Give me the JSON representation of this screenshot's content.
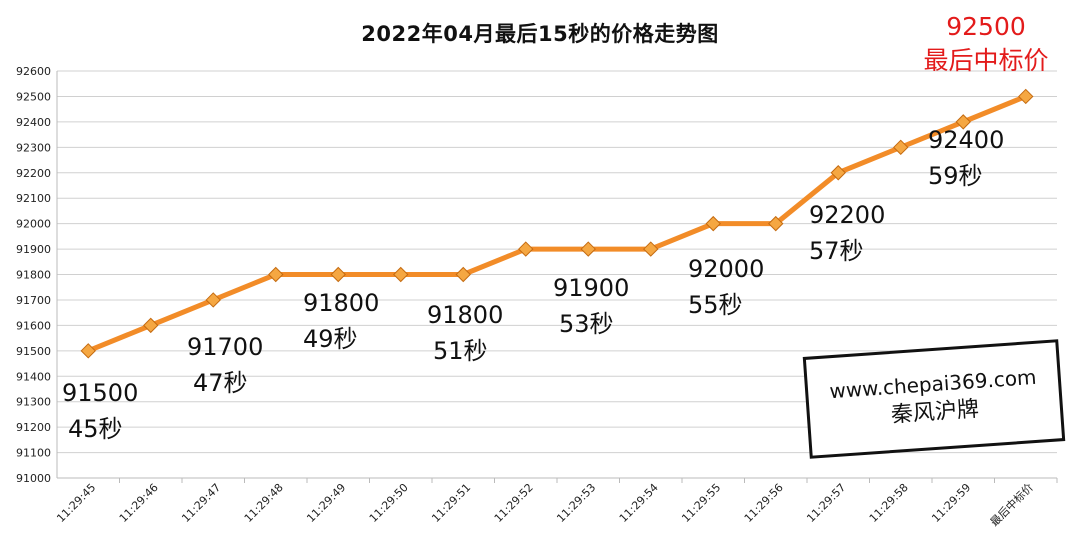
{
  "chart_data": {
    "type": "line",
    "title": "2022年04月最后15秒的价格走势图",
    "categories": [
      "11:29:45",
      "11:29:46",
      "11:29:47",
      "11:29:48",
      "11:29:49",
      "11:29:50",
      "11:29:51",
      "11:29:52",
      "11:29:53",
      "11:29:54",
      "11:29:55",
      "11:29:56",
      "11:29:57",
      "11:29:58",
      "11:29:59",
      "最后中标价"
    ],
    "series": [
      {
        "values": [
          91500,
          91600,
          91700,
          91800,
          91800,
          91800,
          91800,
          91900,
          91900,
          91900,
          92000,
          92000,
          92200,
          92300,
          92400,
          92500
        ]
      }
    ],
    "ylim": [
      91000,
      92600
    ],
    "yticks": [
      91000,
      91100,
      91200,
      91300,
      91400,
      91500,
      91600,
      91700,
      91800,
      91900,
      92000,
      92100,
      92200,
      92300,
      92400,
      92500,
      92600
    ],
    "grid": true,
    "line_color": "#f28c28",
    "marker_color": "#f5a742",
    "annotations": [
      {
        "value": "91500",
        "time": "45秒"
      },
      {
        "value": "91700",
        "time": "47秒"
      },
      {
        "value": "91800",
        "time": "49秒"
      },
      {
        "value": "91800",
        "time": "51秒"
      },
      {
        "value": "91900",
        "time": "53秒"
      },
      {
        "value": "92000",
        "time": "55秒"
      },
      {
        "value": "92200",
        "time": "57秒"
      },
      {
        "value": "92400",
        "time": "59秒"
      }
    ],
    "final_annotation": {
      "value": "92500",
      "label": "最后中标价",
      "color": "#e31b1b"
    }
  },
  "watermark": {
    "url": "www.chepai369.com",
    "name": "秦风沪牌"
  }
}
